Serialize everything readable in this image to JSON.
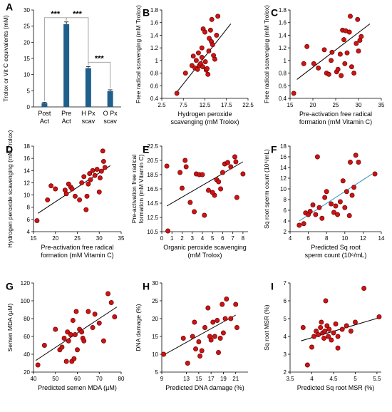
{
  "chart_data": [
    {
      "id": "A",
      "panel_label": "A",
      "type": "bar",
      "ylabel": "Trolox or Vit C equivalents (mM)",
      "ylim": [
        0,
        30
      ],
      "yticks": [
        0,
        5,
        10,
        15,
        20,
        25,
        30
      ],
      "categories": [
        [
          "Post",
          "Act"
        ],
        [
          "Pre",
          "Act"
        ],
        [
          "H Px",
          "scav"
        ],
        [
          "O Px",
          "scav"
        ]
      ],
      "values": [
        1.2,
        25.6,
        12.0,
        4.9
      ],
      "errors": [
        0.2,
        0.7,
        0.5,
        0.4
      ],
      "significance": [
        {
          "from": 0,
          "to": 1,
          "label": "***"
        },
        {
          "from": 1,
          "to": 2,
          "label": "***"
        },
        {
          "from": 2,
          "to": 3,
          "label": "***"
        }
      ],
      "bar_color": "#1f5f8b"
    },
    {
      "id": "B",
      "panel_label": "B",
      "type": "scatter",
      "xlabel": [
        "Hydrogen peroxide",
        "scavenging (mM Trolox)"
      ],
      "ylabel": [
        "Free radical scavenging (mM Trolox)"
      ],
      "xlim": [
        2.5,
        22.5
      ],
      "ylim": [
        0.4,
        1.8
      ],
      "xticks": [
        2.5,
        7.5,
        12.5,
        17.5,
        22.5
      ],
      "yticks": [
        0.4,
        0.6,
        0.8,
        1.0,
        1.2,
        1.4,
        1.6,
        1.8
      ],
      "ytick_labels": [
        "0.4",
        "0.6",
        "0.8",
        "1",
        "1.2",
        "1.4",
        "1.6",
        "1.8"
      ],
      "trend": [
        [
          6.0,
          0.5
        ],
        [
          18.5,
          1.58
        ]
      ],
      "points": [
        [
          6.0,
          0.48
        ],
        [
          8.0,
          0.8
        ],
        [
          9.5,
          0.92
        ],
        [
          9.8,
          1.07
        ],
        [
          10.2,
          0.88
        ],
        [
          10.5,
          1.0
        ],
        [
          10.8,
          0.86
        ],
        [
          11.0,
          1.12
        ],
        [
          11.2,
          0.92
        ],
        [
          11.5,
          0.95
        ],
        [
          11.8,
          1.05
        ],
        [
          11.8,
          1.2
        ],
        [
          12.0,
          0.9
        ],
        [
          12.1,
          1.5
        ],
        [
          12.5,
          1.45
        ],
        [
          12.6,
          0.98
        ],
        [
          12.8,
          0.85
        ],
        [
          13.0,
          0.87
        ],
        [
          13.2,
          0.78
        ],
        [
          13.4,
          1.15
        ],
        [
          13.5,
          1.35
        ],
        [
          13.8,
          1.48
        ],
        [
          14.0,
          1.3
        ],
        [
          14.1,
          1.65
        ],
        [
          14.3,
          1.25
        ],
        [
          14.5,
          1.08
        ],
        [
          14.8,
          1.02
        ],
        [
          15.2,
          1.4
        ],
        [
          15.5,
          1.7
        ]
      ]
    },
    {
      "id": "C",
      "panel_label": "C",
      "type": "scatter",
      "xlabel": [
        "Pre-activation free radical",
        "formation (mM Vitamin C)"
      ],
      "ylabel": [
        "Free radical scavenging (mM Trolox)"
      ],
      "xlim": [
        15,
        35
      ],
      "ylim": [
        0.4,
        1.8
      ],
      "xticks": [
        15,
        20,
        25,
        30,
        35
      ],
      "yticks": [
        0.4,
        0.6,
        0.8,
        1.0,
        1.2,
        1.4,
        1.6,
        1.8
      ],
      "ytick_labels": [
        "0.4",
        "0.6",
        "0.8",
        "1",
        "1.2",
        "1.4",
        "1.6",
        "1.8"
      ],
      "trend": [
        [
          16.5,
          0.7
        ],
        [
          32.5,
          1.58
        ]
      ],
      "points": [
        [
          15.8,
          0.48
        ],
        [
          18.0,
          0.95
        ],
        [
          18.7,
          1.22
        ],
        [
          20.2,
          0.95
        ],
        [
          21.2,
          0.88
        ],
        [
          22.5,
          1.17
        ],
        [
          23.0,
          0.8
        ],
        [
          23.5,
          0.78
        ],
        [
          24.0,
          1.0
        ],
        [
          24.2,
          1.13
        ],
        [
          25.2,
          0.82
        ],
        [
          25.5,
          0.86
        ],
        [
          26.0,
          1.1
        ],
        [
          26.2,
          0.76
        ],
        [
          26.5,
          1.48
        ],
        [
          26.8,
          1.33
        ],
        [
          27.0,
          0.95
        ],
        [
          27.2,
          1.47
        ],
        [
          27.5,
          1.12
        ],
        [
          28.0,
          1.45
        ],
        [
          28.2,
          1.7
        ],
        [
          28.5,
          0.9
        ],
        [
          29.0,
          0.8
        ],
        [
          29.5,
          1.27
        ],
        [
          29.8,
          1.65
        ],
        [
          30.0,
          1.15
        ],
        [
          30.3,
          1.32
        ],
        [
          30.6,
          1.38
        ]
      ]
    },
    {
      "id": "D",
      "panel_label": "D",
      "type": "scatter",
      "xlabel": [
        "Pre-activation free radical",
        "formation (mM Vitamin C)"
      ],
      "ylabel": [
        "Hydrogen peroxide scavenging (mM Trolox)"
      ],
      "xlim": [
        15,
        35
      ],
      "ylim": [
        4,
        18
      ],
      "xticks": [
        15,
        20,
        25,
        30,
        35
      ],
      "yticks": [
        4,
        6,
        8,
        10,
        12,
        14,
        16,
        18
      ],
      "ytick_labels": [
        "4",
        "6",
        "8",
        "10",
        "12",
        "14",
        "16",
        "18"
      ],
      "trend": [
        [
          16.0,
          7.0
        ],
        [
          32.5,
          14.8
        ]
      ],
      "points": [
        [
          15.8,
          5.8
        ],
        [
          18.2,
          9.2
        ],
        [
          19.0,
          11.5
        ],
        [
          20.0,
          11.0
        ],
        [
          22.2,
          10.8
        ],
        [
          22.5,
          10.2
        ],
        [
          23.0,
          11.8
        ],
        [
          23.5,
          11.3
        ],
        [
          23.8,
          11.0
        ],
        [
          24.5,
          9.8
        ],
        [
          25.5,
          9.2
        ],
        [
          26.0,
          12.0
        ],
        [
          26.5,
          13.0
        ],
        [
          27.0,
          7.6
        ],
        [
          27.2,
          9.8
        ],
        [
          27.5,
          11.8
        ],
        [
          27.8,
          13.5
        ],
        [
          28.0,
          12.5
        ],
        [
          28.5,
          14.0
        ],
        [
          29.0,
          13.2
        ],
        [
          29.5,
          14.2
        ],
        [
          30.0,
          10.5
        ],
        [
          30.2,
          12.8
        ],
        [
          30.5,
          13.9
        ],
        [
          30.8,
          17.2
        ],
        [
          31.0,
          15.5
        ],
        [
          31.3,
          14.5
        ]
      ]
    },
    {
      "id": "E",
      "panel_label": "E",
      "type": "scatter",
      "xlabel": [
        "Organic  peroxide scavenging",
        "(mM Trolox)"
      ],
      "ylabel": [
        "Pre-activation free radical",
        "formation (mM Vitamin C)"
      ],
      "xlim": [
        0,
        8.5
      ],
      "ylim": [
        10.5,
        22.5
      ],
      "xticks": [
        0,
        1,
        2,
        3,
        4,
        5,
        6,
        7,
        8
      ],
      "yticks": [
        10.5,
        12.5,
        14.5,
        16.5,
        18.5,
        20.5,
        22.5
      ],
      "ytick_labels": [
        "10.5",
        "12.5",
        "14.5",
        "16.5",
        "18.5",
        "20.5",
        "22.5"
      ],
      "trend": [
        [
          0.5,
          14.1
        ],
        [
          8.0,
          20.3
        ]
      ],
      "points": [
        [
          0.5,
          19.7
        ],
        [
          0.6,
          10.6
        ],
        [
          1.8,
          18.8
        ],
        [
          2.0,
          16.6
        ],
        [
          2.3,
          20.5
        ],
        [
          2.4,
          19.6
        ],
        [
          2.8,
          14.6
        ],
        [
          3.2,
          13.3
        ],
        [
          3.4,
          18.6
        ],
        [
          3.7,
          18.5
        ],
        [
          4.0,
          18.5
        ],
        [
          4.2,
          12.8
        ],
        [
          4.6,
          16.3
        ],
        [
          5.2,
          15.6
        ],
        [
          5.4,
          17.8
        ],
        [
          5.6,
          17.5
        ],
        [
          5.8,
          16.5
        ],
        [
          6.0,
          18.8
        ],
        [
          6.2,
          20.0
        ],
        [
          6.5,
          20.2
        ],
        [
          6.8,
          19.6
        ],
        [
          7.2,
          21.0
        ],
        [
          7.3,
          20.3
        ],
        [
          7.4,
          15.3
        ],
        [
          8.0,
          18.6
        ],
        [
          5.0,
          16.0
        ]
      ]
    },
    {
      "id": "F",
      "panel_label": "F",
      "type": "scatter",
      "xlabel": [
        "Predicted Sq root",
        "sperm count (10⁶/mL)"
      ],
      "ylabel": [
        "Sq root sperm count (10⁶/mL)"
      ],
      "xlim": [
        4,
        14
      ],
      "ylim": [
        2,
        18
      ],
      "xticks": [
        4,
        6,
        8,
        10,
        12,
        14
      ],
      "yticks": [
        2,
        4,
        6,
        8,
        10,
        12,
        14,
        16,
        18
      ],
      "ytick_labels": [
        "2",
        "4",
        "6",
        "8",
        "10",
        "12",
        "14",
        "16",
        "18"
      ],
      "trend": [
        [
          5.0,
          4.0
        ],
        [
          13.0,
          12.8
        ]
      ],
      "trend_color": "#2a8fc4",
      "points": [
        [
          5.0,
          3.2
        ],
        [
          5.5,
          3.5
        ],
        [
          5.7,
          5.5
        ],
        [
          6.0,
          5.2
        ],
        [
          6.2,
          5.8
        ],
        [
          6.5,
          7.0
        ],
        [
          6.8,
          5.2
        ],
        [
          7.0,
          16.0
        ],
        [
          7.2,
          6.5
        ],
        [
          7.5,
          4.5
        ],
        [
          7.8,
          8.4
        ],
        [
          8.0,
          9.5
        ],
        [
          8.5,
          7.2
        ],
        [
          8.8,
          5.6
        ],
        [
          9.0,
          6.8
        ],
        [
          9.2,
          5.2
        ],
        [
          9.5,
          7.6
        ],
        [
          9.8,
          11.5
        ],
        [
          10.0,
          6.5
        ],
        [
          10.2,
          9.5
        ],
        [
          10.5,
          5.0
        ],
        [
          10.6,
          15.0
        ],
        [
          10.8,
          8.8
        ],
        [
          11.0,
          10.3
        ],
        [
          11.2,
          16.3
        ],
        [
          11.5,
          15.0
        ],
        [
          13.3,
          12.8
        ]
      ]
    },
    {
      "id": "G",
      "panel_label": "G",
      "type": "scatter",
      "xlabel": [
        "Predicted semen MDA (µM)"
      ],
      "ylabel": [
        "Semen MDA (µM)"
      ],
      "xlim": [
        40,
        80
      ],
      "ylim": [
        20,
        120
      ],
      "xticks": [
        40,
        50,
        60,
        70,
        80
      ],
      "yticks": [
        20,
        40,
        60,
        80,
        100,
        120
      ],
      "ytick_labels": [
        "20",
        "40",
        "60",
        "80",
        "100",
        "120"
      ],
      "trend": [
        [
          41.0,
          33.0
        ],
        [
          78.0,
          93.0
        ]
      ],
      "points": [
        [
          42.0,
          28.0
        ],
        [
          45.0,
          50.0
        ],
        [
          50.0,
          68.0
        ],
        [
          52.0,
          45.0
        ],
        [
          53.0,
          48.0
        ],
        [
          54.0,
          58.0
        ],
        [
          55.0,
          32.0
        ],
        [
          55.5,
          65.0
        ],
        [
          56.0,
          55.0
        ],
        [
          57.0,
          62.0
        ],
        [
          57.5,
          32.0
        ],
        [
          58.0,
          78.0
        ],
        [
          58.5,
          35.0
        ],
        [
          59.0,
          62.0
        ],
        [
          59.5,
          88.0
        ],
        [
          60.0,
          45.0
        ],
        [
          61.0,
          68.0
        ],
        [
          62.0,
          65.0
        ],
        [
          62.5,
          58.0
        ],
        [
          63.0,
          55.0
        ],
        [
          65.0,
          88.0
        ],
        [
          67.0,
          70.0
        ],
        [
          68.0,
          85.0
        ],
        [
          70.0,
          75.0
        ],
        [
          72.0,
          55.0
        ],
        [
          74.0,
          108.0
        ],
        [
          75.5,
          98.0
        ],
        [
          77.0,
          82.0
        ]
      ]
    },
    {
      "id": "H",
      "panel_label": "H",
      "type": "scatter",
      "xlabel": [
        "Predicted DNA damage (%)"
      ],
      "ylabel": [
        "DNA damage (%)"
      ],
      "xlim": [
        9,
        23
      ],
      "ylim": [
        5,
        30
      ],
      "xticks": [
        9,
        13,
        15,
        17,
        19,
        21
      ],
      "yticks": [
        5,
        10,
        15,
        20,
        25,
        30
      ],
      "xtick_labels": [
        "9",
        "13",
        "15",
        "17",
        "19",
        "21"
      ],
      "ytick_labels": [
        "5",
        "10",
        "15",
        "20",
        "25",
        "30"
      ],
      "trend": [
        [
          9.3,
          9.8
        ],
        [
          21.0,
          21.0
        ]
      ],
      "points": [
        [
          9.3,
          10.0
        ],
        [
          12.5,
          14.5
        ],
        [
          13.2,
          7.5
        ],
        [
          14.0,
          15.0
        ],
        [
          14.3,
          19.0
        ],
        [
          14.5,
          11.5
        ],
        [
          15.0,
          13.5
        ],
        [
          15.2,
          9.5
        ],
        [
          15.5,
          11.0
        ],
        [
          16.0,
          17.5
        ],
        [
          16.5,
          23.0
        ],
        [
          16.8,
          15.0
        ],
        [
          17.0,
          14.0
        ],
        [
          17.3,
          19.0
        ],
        [
          17.6,
          15.0
        ],
        [
          18.0,
          19.5
        ],
        [
          18.2,
          10.5
        ],
        [
          18.5,
          14.5
        ],
        [
          18.8,
          24.0
        ],
        [
          19.3,
          20.0
        ],
        [
          19.5,
          25.5
        ],
        [
          20.2,
          20.0
        ],
        [
          21.0,
          24.0
        ],
        [
          21.2,
          17.5
        ],
        [
          19.0,
          16.0
        ]
      ]
    },
    {
      "id": "I",
      "panel_label": "I",
      "type": "scatter",
      "xlabel": [
        "Predicted Sq root MSR (%)"
      ],
      "ylabel": [
        "Sq root MSR (%)"
      ],
      "xlim": [
        3.5,
        5.6
      ],
      "ylim": [
        2.0,
        7.0
      ],
      "xticks": [
        3.5,
        4.0,
        4.5,
        5.0,
        5.5
      ],
      "yticks": [
        2.0,
        3.0,
        4.0,
        5.0,
        6.0,
        7.0
      ],
      "xtick_labels": [
        "3.5",
        "4",
        "4.5",
        "5",
        "5.5"
      ],
      "ytick_labels": [
        "2",
        "3",
        "4",
        "5",
        "6",
        "7"
      ],
      "trend": [
        [
          3.75,
          3.75
        ],
        [
          5.55,
          5.05
        ]
      ],
      "points": [
        [
          3.8,
          4.5
        ],
        [
          3.9,
          2.4
        ],
        [
          4.0,
          3.4
        ],
        [
          4.05,
          4.0
        ],
        [
          4.1,
          4.3
        ],
        [
          4.15,
          4.1
        ],
        [
          4.2,
          4.5
        ],
        [
          4.22,
          4.8
        ],
        [
          4.25,
          4.2
        ],
        [
          4.28,
          3.9
        ],
        [
          4.3,
          4.3
        ],
        [
          4.32,
          6.0
        ],
        [
          4.35,
          4.6
        ],
        [
          4.38,
          4.0
        ],
        [
          4.4,
          4.4
        ],
        [
          4.45,
          3.8
        ],
        [
          4.5,
          4.2
        ],
        [
          4.55,
          4.7
        ],
        [
          4.6,
          4.0
        ],
        [
          4.7,
          4.4
        ],
        [
          4.8,
          4.6
        ],
        [
          4.9,
          4.3
        ],
        [
          5.0,
          4.8
        ],
        [
          5.2,
          6.7
        ],
        [
          5.55,
          5.1
        ],
        [
          4.6,
          3.35
        ]
      ]
    }
  ]
}
